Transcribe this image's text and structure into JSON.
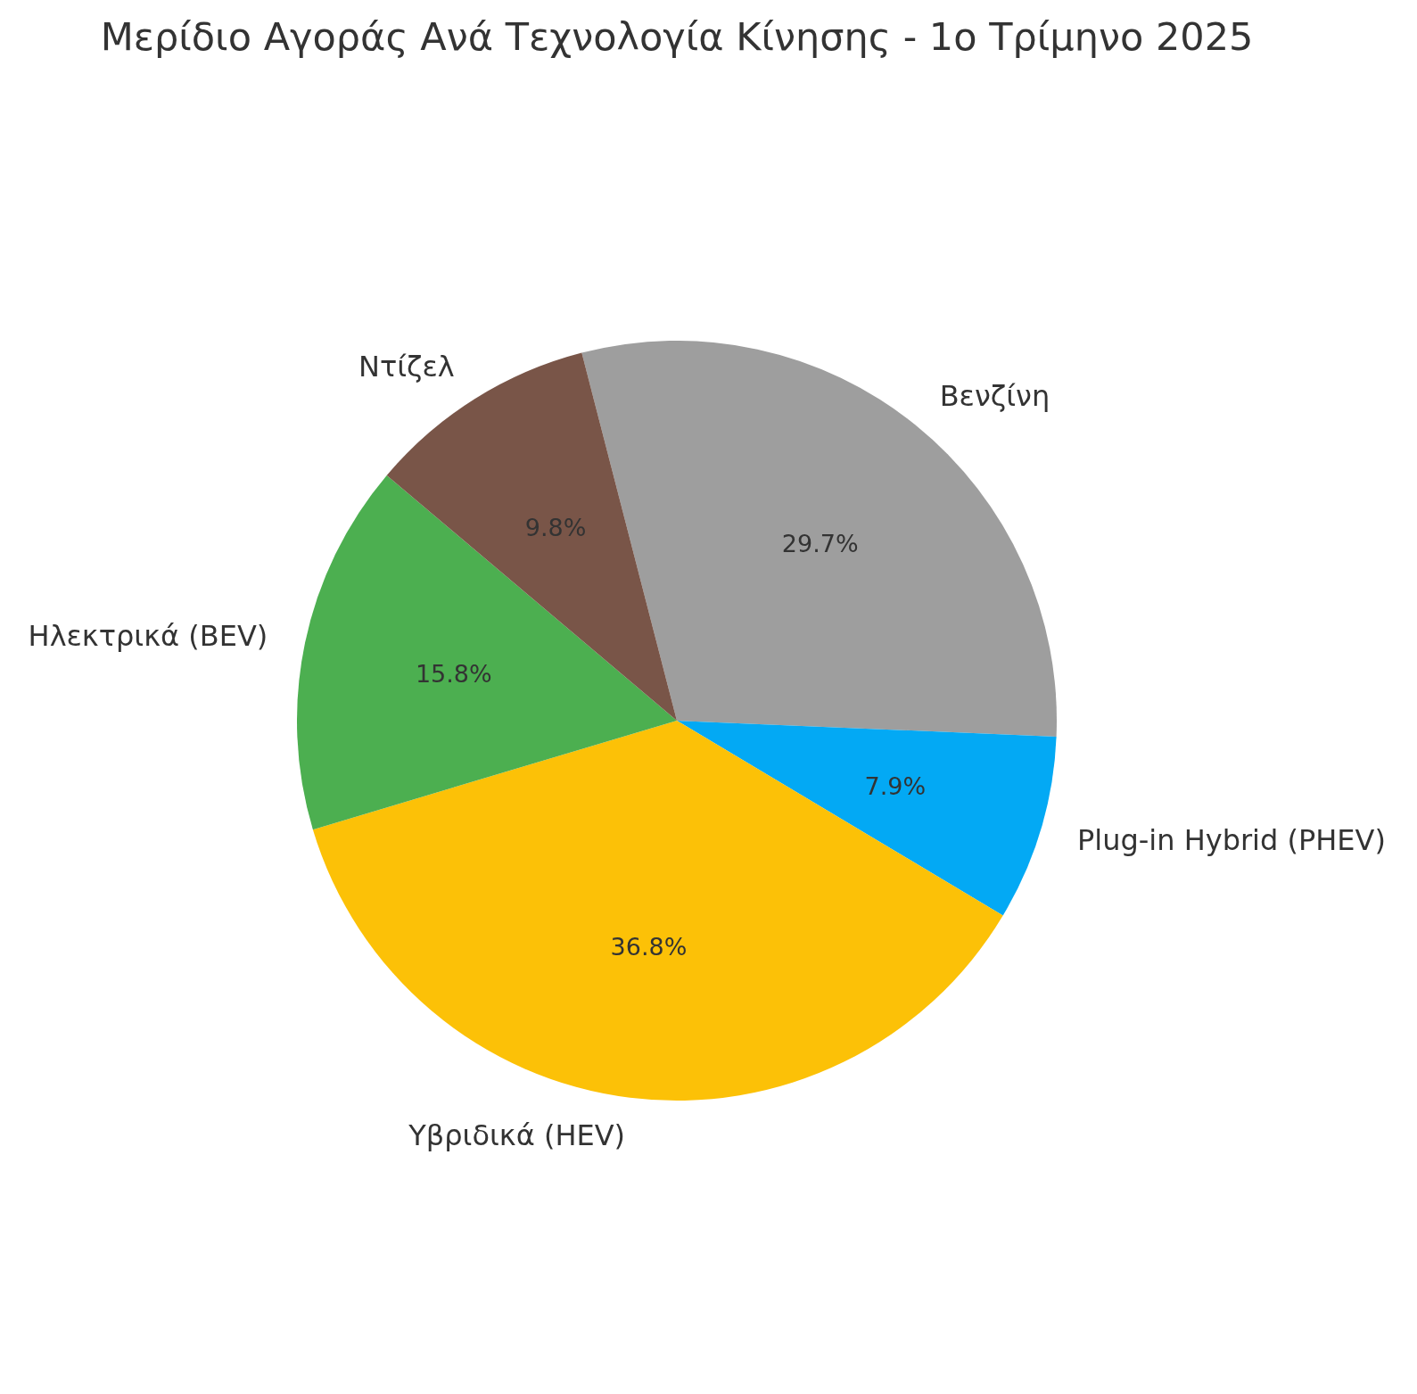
{
  "chart_data": {
    "type": "pie",
    "title": "Μερίδιο Αγοράς Ανά Τεχνολογία Κίνησης - 1ο Τρίμηνο 2025",
    "categories": [
      "Βενζίνη",
      "Plug-in Hybrid (PHEV)",
      "Υβριδικά (HEV)",
      "Ηλεκτρικά (BEV)",
      "Ντίζελ"
    ],
    "values": [
      29.7,
      7.9,
      36.8,
      15.8,
      9.8
    ],
    "colors": [
      "#9e9e9e",
      "#03a9f4",
      "#fcc107",
      "#4caf50",
      "#795548"
    ],
    "value_labels": [
      "29.7%",
      "7.9%",
      "36.8%",
      "15.8%",
      "9.8%"
    ]
  }
}
